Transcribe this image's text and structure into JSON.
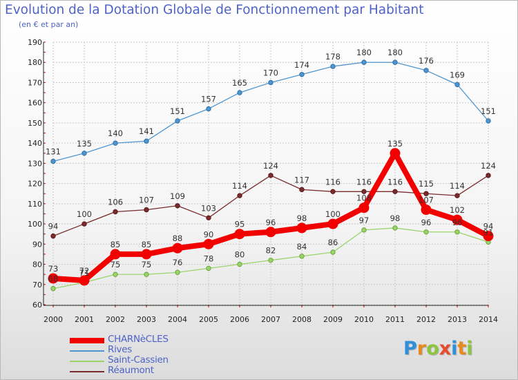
{
  "chart_data": {
    "type": "line",
    "title": "Evolution de la Dotation Globale de Fonctionnement par Habitant",
    "subtitle": "(en € et par an)",
    "xlabel": "",
    "ylabel": "",
    "ylim": [
      60,
      190
    ],
    "yticks": [
      60,
      70,
      80,
      90,
      100,
      110,
      120,
      130,
      140,
      150,
      160,
      170,
      180,
      190
    ],
    "grid": true,
    "legend_position": "bottom-left",
    "categories": [
      "2000",
      "2001",
      "2002",
      "2003",
      "2004",
      "2005",
      "2006",
      "2007",
      "2008",
      "2009",
      "2010",
      "2011",
      "2012",
      "2013",
      "2014"
    ],
    "series": [
      {
        "name": "Rives",
        "color": "#4f96d0",
        "values": [
          131,
          135,
          140,
          141,
          151,
          157,
          165,
          170,
          174,
          178,
          180,
          180,
          176,
          169,
          151
        ]
      },
      {
        "name": "Réaumont",
        "color": "#7a2b2b",
        "values": [
          94,
          100,
          106,
          107,
          109,
          103,
          114,
          124,
          117,
          116,
          116,
          116,
          115,
          114,
          124
        ]
      },
      {
        "name": "Saint-Cassien",
        "color": "#9bd36b",
        "values": [
          68,
          71,
          75,
          75,
          76,
          78,
          80,
          82,
          84,
          86,
          97,
          98,
          96,
          96,
          91
        ]
      },
      {
        "name": "CHARNèCLES",
        "color": "#f20000",
        "values": [
          73,
          72,
          85,
          85,
          88,
          90,
          95,
          96,
          98,
          100,
          108,
          135,
          107,
          102,
          94
        ]
      }
    ],
    "point_labels": {
      "Rives": [
        "131",
        "135",
        "140",
        "141",
        "151",
        "157",
        "165",
        "170",
        "174",
        "178",
        "180",
        "180",
        "176",
        "169",
        "151"
      ],
      "Réaumont": [
        "94",
        "100",
        "106",
        "107",
        "109",
        "103",
        "114",
        "124",
        "117",
        "116",
        "116",
        "116",
        "115",
        "114",
        "124"
      ],
      "Saint-Cassien": [
        "68",
        "71",
        "75",
        "75",
        "76",
        "78",
        "80",
        "82",
        "84",
        "86",
        "97",
        "98",
        "96",
        "96",
        "91"
      ],
      "CHARNèCLES": [
        "73",
        "72",
        "85",
        "85",
        "88",
        "90",
        "95",
        "96",
        "98",
        "100",
        "108",
        "135",
        "107",
        "102",
        "94"
      ]
    }
  },
  "legend": {
    "items": [
      {
        "label": "CHARNèCLES",
        "color": "#f20000",
        "bold": true
      },
      {
        "label": "Rives",
        "color": "#4f96d0",
        "bold": false
      },
      {
        "label": "Saint-Cassien",
        "color": "#9bd36b",
        "bold": false
      },
      {
        "label": "Réaumont",
        "color": "#7a2b2b",
        "bold": false
      }
    ]
  },
  "logo": {
    "letters": [
      "P",
      "r",
      "o",
      "x",
      "i",
      "t",
      "i"
    ],
    "colors": [
      "#2f8fd8",
      "#e88a1a",
      "#8cc63f",
      "#e84a2a",
      "#2f8fd8",
      "#e88a1a",
      "#8cc63f"
    ]
  }
}
